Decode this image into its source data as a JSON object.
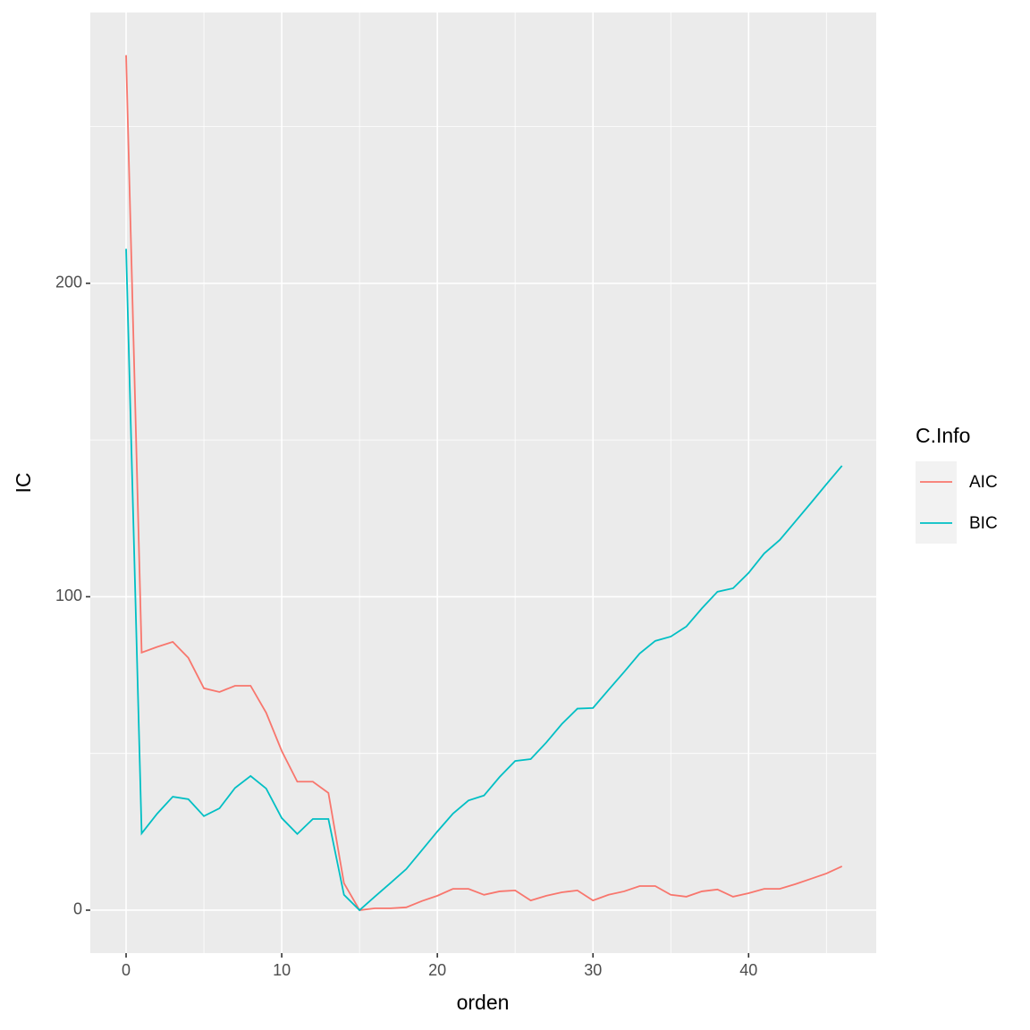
{
  "chart_data": {
    "type": "line",
    "x_label": "orden",
    "y_label": "IC",
    "legend_title": "C.Info",
    "x": [
      0,
      1,
      2,
      3,
      4,
      5,
      6,
      7,
      8,
      9,
      10,
      11,
      12,
      13,
      14,
      15,
      16,
      17,
      18,
      19,
      20,
      21,
      22,
      23,
      24,
      25,
      26,
      27,
      28,
      29,
      30,
      31,
      32,
      33,
      34,
      35,
      36,
      37,
      38,
      39,
      40,
      41,
      42,
      43,
      44,
      45,
      46
    ],
    "series": [
      {
        "name": "AIC",
        "color": "#F8766D",
        "values": [
          272.8,
          82.2,
          84,
          85.6,
          80.5,
          70.8,
          69.6,
          71.6,
          71.6,
          63,
          50.8,
          41,
          41,
          37.4,
          8.6,
          0,
          0.6,
          0.6,
          0.9,
          2.9,
          4.6,
          6.8,
          6.8,
          4.9,
          6,
          6.3,
          3.1,
          4.6,
          5.7,
          6.3,
          3.1,
          4.9,
          6,
          7.7,
          7.7,
          4.9,
          4.3,
          6,
          6.6,
          4.3,
          5.4,
          6.8,
          6.8,
          8.3,
          10,
          11.7,
          14
        ]
      },
      {
        "name": "BIC",
        "color": "#00BFC4",
        "values": [
          211,
          24.5,
          30.8,
          36.2,
          35.4,
          30,
          32.5,
          39,
          42.8,
          38.8,
          29.4,
          24.3,
          29.1,
          29.1,
          4.9,
          0,
          4.4,
          8.7,
          13.1,
          19.1,
          25.1,
          30.8,
          35,
          36.6,
          42.5,
          47.6,
          48.2,
          53.5,
          59.4,
          64.3,
          64.5,
          70.3,
          76,
          81.9,
          85.9,
          87.3,
          90.5,
          96.3,
          101.6,
          102.7,
          107.6,
          113.8,
          118.1,
          124,
          129.9,
          135.9,
          141.8
        ]
      }
    ],
    "xlim": [
      -2.3,
      48.2
    ],
    "xticks": [
      0,
      10,
      20,
      30,
      40
    ],
    "ylim": [
      -13.7,
      286.4
    ],
    "yticks": [
      0,
      100,
      200
    ],
    "grid": true,
    "legend_position": "right"
  }
}
